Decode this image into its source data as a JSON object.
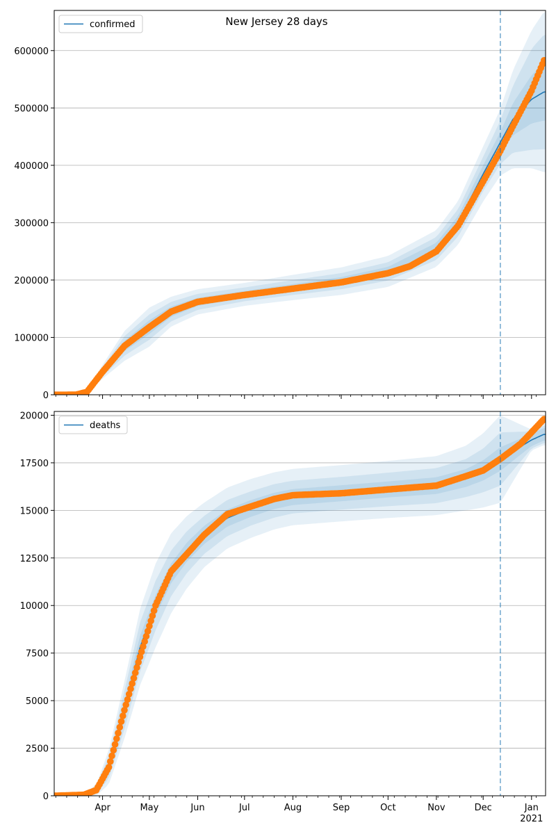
{
  "figure_title": "New Jersey 28 days",
  "colors": {
    "model": "#1f77b4",
    "observed": "#ff7f0e",
    "band": "#1f77b4",
    "grid": "#b0b0b0"
  },
  "chart_data": [
    {
      "type": "line",
      "panel": "top",
      "title": "New Jersey 28 days",
      "legend": [
        "confirmed"
      ],
      "legend_position": "upper left",
      "grid": "horizontal",
      "ylim": [
        0,
        670000
      ],
      "yticks": [
        0,
        100000,
        200000,
        300000,
        400000,
        500000,
        600000
      ],
      "ytick_labels": [
        "0",
        "100000",
        "200000",
        "300000",
        "400000",
        "500000",
        "600000"
      ],
      "forecast_start": "2020-12-12",
      "series": [
        {
          "name": "confirmed",
          "style": "line",
          "x": [
            "2020-03-01",
            "2020-03-15",
            "2020-03-22",
            "2020-04-01",
            "2020-04-15",
            "2020-05-01",
            "2020-05-15",
            "2020-06-01",
            "2020-07-01",
            "2020-08-01",
            "2020-09-01",
            "2020-10-01",
            "2020-10-15",
            "2020-11-01",
            "2020-11-15",
            "2020-12-01",
            "2020-12-12",
            "2020-12-20",
            "2021-01-01",
            "2021-01-09"
          ],
          "values": [
            0,
            100,
            5000,
            40000,
            85000,
            118000,
            145000,
            162000,
            175000,
            187000,
            198000,
            215000,
            228000,
            255000,
            300000,
            385000,
            440000,
            480000,
            515000,
            528000
          ]
        },
        {
          "name": "",
          "style": "markers",
          "x": [
            "2020-03-01",
            "2020-03-15",
            "2020-03-22",
            "2020-04-01",
            "2020-04-15",
            "2020-05-01",
            "2020-05-15",
            "2020-06-01",
            "2020-07-01",
            "2020-08-01",
            "2020-09-01",
            "2020-10-01",
            "2020-10-15",
            "2020-11-01",
            "2020-11-15",
            "2020-12-01",
            "2020-12-12",
            "2020-12-20",
            "2021-01-01",
            "2021-01-09"
          ],
          "values": [
            0,
            100,
            5000,
            40000,
            85000,
            118000,
            145000,
            162000,
            174000,
            185000,
            196000,
            212000,
            224000,
            250000,
            295000,
            372000,
            425000,
            468000,
            530000,
            583000
          ]
        }
      ],
      "bands": {
        "x": [
          "2020-03-01",
          "2020-03-22",
          "2020-04-01",
          "2020-04-15",
          "2020-05-01",
          "2020-05-15",
          "2020-06-01",
          "2020-07-01",
          "2020-08-01",
          "2020-09-01",
          "2020-10-01",
          "2020-11-01",
          "2020-11-15",
          "2020-12-01",
          "2020-12-12",
          "2020-12-20",
          "2021-01-01",
          "2021-01-09"
        ],
        "median": [
          0,
          5000,
          40000,
          85000,
          118000,
          145000,
          162000,
          175000,
          187000,
          198000,
          215000,
          255000,
          300000,
          385000,
          440000,
          480000,
          515000,
          528000
        ],
        "widths": [
          [
            0,
            800,
            4000,
            9000,
            12000,
            9000,
            7000,
            6000,
            6000,
            7000,
            8000,
            10000,
            12000,
            15000,
            18000,
            28000,
            42000,
            50000
          ],
          [
            0,
            1600,
            8000,
            17000,
            22000,
            17000,
            14000,
            12000,
            13000,
            14000,
            16000,
            20000,
            24000,
            30000,
            38000,
            58000,
            88000,
            100000
          ],
          [
            0,
            2400,
            12000,
            26000,
            34000,
            26000,
            22000,
            20000,
            22000,
            24000,
            27000,
            32000,
            38000,
            48000,
            58000,
            85000,
            120000,
            140000
          ]
        ]
      }
    },
    {
      "type": "line",
      "panel": "bottom",
      "legend": [
        "deaths"
      ],
      "legend_position": "upper left",
      "grid": "horizontal",
      "ylim": [
        0,
        20200
      ],
      "yticks": [
        0,
        2500,
        5000,
        7500,
        10000,
        12500,
        15000,
        17500,
        20000
      ],
      "ytick_labels": [
        "0",
        "2500",
        "5000",
        "7500",
        "10000",
        "12500",
        "15000",
        "17500",
        "20000"
      ],
      "xtick_labels": [
        "Apr",
        "May",
        "Jun",
        "Jul",
        "Aug",
        "Sep",
        "Oct",
        "Nov",
        "Dec",
        "Jan"
      ],
      "xtick_year_label": "2021",
      "forecast_start": "2020-12-12",
      "series": [
        {
          "name": "deaths",
          "style": "line",
          "x": [
            "2020-03-01",
            "2020-03-20",
            "2020-03-28",
            "2020-04-05",
            "2020-04-15",
            "2020-04-25",
            "2020-05-05",
            "2020-05-15",
            "2020-05-25",
            "2020-06-05",
            "2020-06-20",
            "2020-07-05",
            "2020-07-20",
            "2020-08-01",
            "2020-09-01",
            "2020-10-01",
            "2020-11-01",
            "2020-11-20",
            "2020-12-01",
            "2020-12-12",
            "2021-01-01",
            "2021-01-09"
          ],
          "values": [
            0,
            50,
            300,
            1500,
            4500,
            7800,
            10000,
            11700,
            12800,
            13700,
            14600,
            15100,
            15500,
            15700,
            15900,
            16100,
            16300,
            16700,
            17100,
            17700,
            18700,
            19000
          ]
        },
        {
          "name": "",
          "style": "markers",
          "x": [
            "2020-03-01",
            "2020-03-20",
            "2020-03-28",
            "2020-04-05",
            "2020-04-15",
            "2020-04-25",
            "2020-05-05",
            "2020-05-15",
            "2020-05-25",
            "2020-06-05",
            "2020-06-20",
            "2020-07-05",
            "2020-07-20",
            "2020-08-01",
            "2020-09-01",
            "2020-10-01",
            "2020-11-01",
            "2020-11-20",
            "2020-12-01",
            "2020-12-12",
            "2020-12-25",
            "2021-01-01",
            "2021-01-09"
          ],
          "values": [
            0,
            50,
            300,
            1500,
            4500,
            7300,
            10000,
            11800,
            12700,
            13700,
            14800,
            15200,
            15600,
            15800,
            15900,
            16100,
            16300,
            16800,
            17100,
            17700,
            18500,
            19100,
            19800
          ]
        }
      ],
      "bands": {
        "x": [
          "2020-03-01",
          "2020-03-20",
          "2020-03-28",
          "2020-04-05",
          "2020-04-15",
          "2020-04-25",
          "2020-05-05",
          "2020-05-15",
          "2020-05-25",
          "2020-06-05",
          "2020-06-20",
          "2020-07-05",
          "2020-07-20",
          "2020-08-01",
          "2020-09-01",
          "2020-10-01",
          "2020-11-01",
          "2020-11-20",
          "2020-12-01",
          "2020-12-12",
          "2021-01-01",
          "2021-01-09"
        ],
        "median": [
          0,
          50,
          300,
          1500,
          4500,
          7800,
          10000,
          11700,
          12800,
          13700,
          14600,
          15100,
          15500,
          15700,
          15900,
          16100,
          16300,
          16700,
          17100,
          17700,
          18700,
          19000
        ],
        "widths": [
          [
            0,
            20,
            100,
            300,
            500,
            600,
            550,
            520,
            500,
            480,
            450,
            440,
            430,
            420,
            420,
            420,
            440,
            470,
            530,
            620,
            320,
            330
          ],
          [
            0,
            40,
            200,
            600,
            1000,
            1300,
            1300,
            1200,
            1100,
            1000,
            950,
            900,
            880,
            860,
            860,
            880,
            920,
            1000,
            1150,
            1400,
            450,
            460
          ],
          [
            0,
            60,
            300,
            900,
            1500,
            2000,
            2200,
            2100,
            1900,
            1700,
            1600,
            1550,
            1500,
            1480,
            1480,
            1500,
            1550,
            1700,
            1950,
            2300,
            550,
            570
          ]
        ]
      }
    }
  ]
}
